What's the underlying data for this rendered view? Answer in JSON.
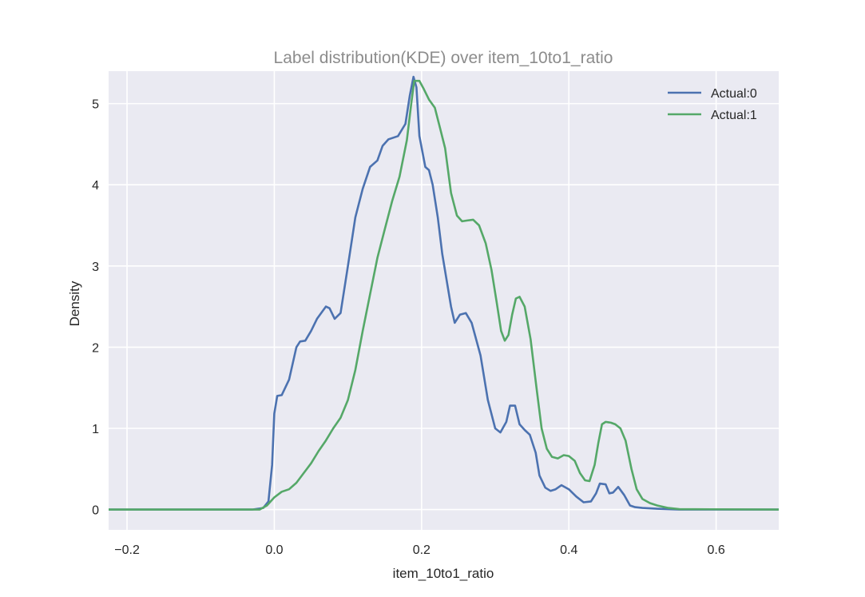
{
  "chart_data": {
    "type": "line",
    "title": "Label distribution(KDE) over item_10to1_ratio",
    "xlabel": "item_10to1_ratio",
    "ylabel": "Density",
    "xlim": [
      -0.225,
      0.685
    ],
    "ylim": [
      -0.25,
      5.4
    ],
    "xticks": [
      -0.2,
      0.0,
      0.2,
      0.4,
      0.6
    ],
    "xtick_labels": [
      "−0.2",
      "0.0",
      "0.2",
      "0.4",
      "0.6"
    ],
    "yticks": [
      0,
      1,
      2,
      3,
      4,
      5
    ],
    "ytick_labels": [
      "0",
      "1",
      "2",
      "3",
      "4",
      "5"
    ],
    "grid": true,
    "legend_position": "top-right",
    "series": [
      {
        "name": "Actual:0",
        "color": "#4c72b0",
        "points": [
          [
            -0.225,
            0
          ],
          [
            -0.03,
            0
          ],
          [
            -0.015,
            0.02
          ],
          [
            -0.008,
            0.1
          ],
          [
            -0.003,
            0.55
          ],
          [
            0.0,
            1.18
          ],
          [
            0.004,
            1.4
          ],
          [
            0.01,
            1.41
          ],
          [
            0.02,
            1.6
          ],
          [
            0.03,
            2.0
          ],
          [
            0.035,
            2.07
          ],
          [
            0.042,
            2.08
          ],
          [
            0.05,
            2.2
          ],
          [
            0.058,
            2.35
          ],
          [
            0.07,
            2.5
          ],
          [
            0.075,
            2.48
          ],
          [
            0.082,
            2.35
          ],
          [
            0.09,
            2.42
          ],
          [
            0.1,
            3.0
          ],
          [
            0.11,
            3.6
          ],
          [
            0.12,
            3.95
          ],
          [
            0.13,
            4.22
          ],
          [
            0.14,
            4.3
          ],
          [
            0.147,
            4.48
          ],
          [
            0.155,
            4.56
          ],
          [
            0.168,
            4.6
          ],
          [
            0.178,
            4.75
          ],
          [
            0.184,
            5.1
          ],
          [
            0.189,
            5.33
          ],
          [
            0.193,
            5.2
          ],
          [
            0.197,
            4.6
          ],
          [
            0.205,
            4.22
          ],
          [
            0.21,
            4.18
          ],
          [
            0.215,
            4.0
          ],
          [
            0.222,
            3.6
          ],
          [
            0.228,
            3.15
          ],
          [
            0.24,
            2.5
          ],
          [
            0.245,
            2.3
          ],
          [
            0.252,
            2.4
          ],
          [
            0.26,
            2.42
          ],
          [
            0.268,
            2.3
          ],
          [
            0.28,
            1.9
          ],
          [
            0.29,
            1.35
          ],
          [
            0.3,
            1.0
          ],
          [
            0.307,
            0.95
          ],
          [
            0.315,
            1.08
          ],
          [
            0.32,
            1.28
          ],
          [
            0.327,
            1.28
          ],
          [
            0.333,
            1.05
          ],
          [
            0.34,
            0.98
          ],
          [
            0.347,
            0.92
          ],
          [
            0.355,
            0.7
          ],
          [
            0.36,
            0.42
          ],
          [
            0.368,
            0.27
          ],
          [
            0.375,
            0.23
          ],
          [
            0.382,
            0.25
          ],
          [
            0.39,
            0.3
          ],
          [
            0.4,
            0.25
          ],
          [
            0.41,
            0.16
          ],
          [
            0.42,
            0.09
          ],
          [
            0.43,
            0.1
          ],
          [
            0.437,
            0.2
          ],
          [
            0.442,
            0.32
          ],
          [
            0.45,
            0.31
          ],
          [
            0.455,
            0.2
          ],
          [
            0.46,
            0.21
          ],
          [
            0.467,
            0.28
          ],
          [
            0.475,
            0.18
          ],
          [
            0.483,
            0.05
          ],
          [
            0.49,
            0.03
          ],
          [
            0.5,
            0.02
          ],
          [
            0.52,
            0.01
          ],
          [
            0.55,
            0
          ],
          [
            0.685,
            0
          ]
        ]
      },
      {
        "name": "Actual:1",
        "color": "#55a868",
        "points": [
          [
            -0.225,
            0
          ],
          [
            -0.02,
            0
          ],
          [
            -0.01,
            0.05
          ],
          [
            0.0,
            0.15
          ],
          [
            0.01,
            0.22
          ],
          [
            0.02,
            0.25
          ],
          [
            0.03,
            0.33
          ],
          [
            0.04,
            0.45
          ],
          [
            0.05,
            0.57
          ],
          [
            0.06,
            0.72
          ],
          [
            0.07,
            0.85
          ],
          [
            0.08,
            1.0
          ],
          [
            0.09,
            1.13
          ],
          [
            0.1,
            1.35
          ],
          [
            0.11,
            1.72
          ],
          [
            0.12,
            2.2
          ],
          [
            0.13,
            2.65
          ],
          [
            0.14,
            3.1
          ],
          [
            0.15,
            3.45
          ],
          [
            0.16,
            3.8
          ],
          [
            0.17,
            4.1
          ],
          [
            0.18,
            4.55
          ],
          [
            0.186,
            5.0
          ],
          [
            0.19,
            5.28
          ],
          [
            0.197,
            5.28
          ],
          [
            0.203,
            5.18
          ],
          [
            0.21,
            5.05
          ],
          [
            0.218,
            4.95
          ],
          [
            0.225,
            4.7
          ],
          [
            0.232,
            4.45
          ],
          [
            0.24,
            3.9
          ],
          [
            0.248,
            3.62
          ],
          [
            0.255,
            3.55
          ],
          [
            0.262,
            3.56
          ],
          [
            0.27,
            3.57
          ],
          [
            0.278,
            3.5
          ],
          [
            0.287,
            3.28
          ],
          [
            0.295,
            2.95
          ],
          [
            0.302,
            2.55
          ],
          [
            0.308,
            2.2
          ],
          [
            0.313,
            2.08
          ],
          [
            0.318,
            2.15
          ],
          [
            0.323,
            2.4
          ],
          [
            0.328,
            2.6
          ],
          [
            0.333,
            2.62
          ],
          [
            0.34,
            2.5
          ],
          [
            0.348,
            2.1
          ],
          [
            0.356,
            1.5
          ],
          [
            0.363,
            1.0
          ],
          [
            0.37,
            0.75
          ],
          [
            0.377,
            0.65
          ],
          [
            0.385,
            0.63
          ],
          [
            0.393,
            0.67
          ],
          [
            0.4,
            0.66
          ],
          [
            0.408,
            0.6
          ],
          [
            0.415,
            0.45
          ],
          [
            0.422,
            0.36
          ],
          [
            0.428,
            0.35
          ],
          [
            0.435,
            0.55
          ],
          [
            0.44,
            0.82
          ],
          [
            0.445,
            1.05
          ],
          [
            0.45,
            1.08
          ],
          [
            0.457,
            1.07
          ],
          [
            0.463,
            1.05
          ],
          [
            0.47,
            1.0
          ],
          [
            0.477,
            0.85
          ],
          [
            0.485,
            0.5
          ],
          [
            0.492,
            0.25
          ],
          [
            0.5,
            0.13
          ],
          [
            0.51,
            0.08
          ],
          [
            0.52,
            0.05
          ],
          [
            0.535,
            0.02
          ],
          [
            0.55,
            0.005
          ],
          [
            0.685,
            0
          ]
        ]
      }
    ]
  }
}
